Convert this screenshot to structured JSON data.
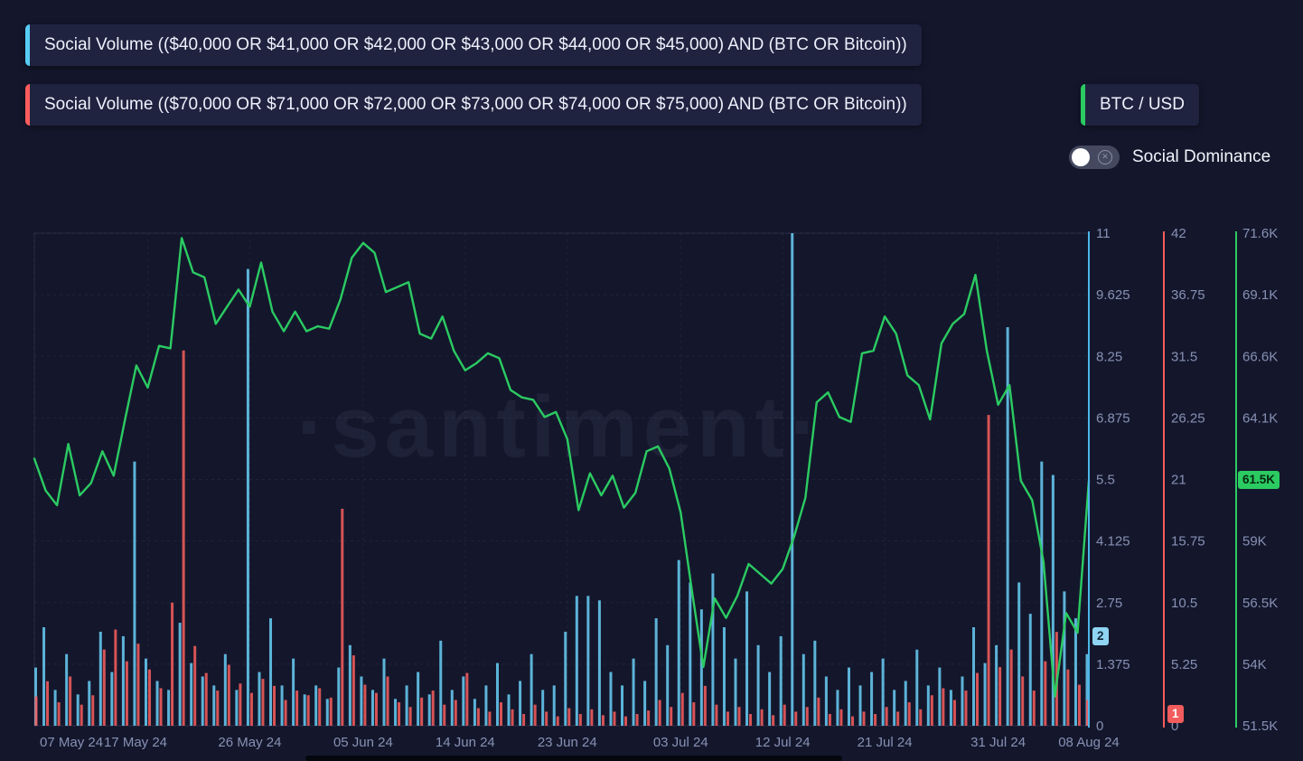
{
  "legend": {
    "items": [
      {
        "label": "Social Volume (($40,000 OR $41,000 OR $42,000 OR $43,000 OR $44,000 OR $45,000) AND (BTC OR Bitcoin))",
        "color": "#56cdf5"
      },
      {
        "label": "Social Volume (($70,000 OR $71,000 OR $72,000 OR $73,000 OR $74,000 OR $75,000) AND (BTC OR Bitcoin))",
        "color": "#ff5c5c"
      },
      {
        "label": "BTC / USD",
        "color": "#2bcb62"
      }
    ]
  },
  "controls": {
    "social_dominance_label": "Social Dominance"
  },
  "watermark": "·santiment·",
  "badges": {
    "blue_current": "2",
    "red_current": "1",
    "green_current": "61.5K"
  },
  "chart_data": {
    "type": "mixed",
    "x_tick_labels": [
      "07 May 24",
      "17 May 24",
      "26 May 24",
      "05 Jun 24",
      "14 Jun 24",
      "23 Jun 24",
      "03 Jul 24",
      "12 Jul 24",
      "21 Jul 24",
      "31 Jul 24",
      "08 Aug 24"
    ],
    "x_tick_days": [
      0,
      10,
      19,
      29,
      38,
      47,
      57,
      66,
      75,
      85,
      93
    ],
    "grid": true,
    "axes": {
      "blue": {
        "ticks": [
          "0",
          "1.375",
          "2.75",
          "4.125",
          "5.5",
          "6.875",
          "8.25",
          "9.625",
          "11"
        ],
        "min": 0,
        "max": 11,
        "color": "#4db5e8",
        "current": 2
      },
      "red": {
        "ticks": [
          "0",
          "5.25",
          "10.5",
          "15.75",
          "21",
          "26.25",
          "31.5",
          "36.75",
          "42"
        ],
        "min": 0,
        "max": 42,
        "color": "#f25c5c",
        "current": 1
      },
      "green": {
        "ticks": [
          "51.5K",
          "54K",
          "56.5K",
          "59K",
          "61.5K",
          "64.1K",
          "66.6K",
          "69.1K",
          "71.6K"
        ],
        "min": 51.5,
        "max": 71.6,
        "color": "#2bcb62",
        "current": 61.5
      }
    },
    "series": [
      {
        "name": "Social Volume (($40,000 OR $41,000 OR $42,000 OR $43,000 OR $44,000 OR $45,000) AND (BTC OR Bitcoin))",
        "type": "bar",
        "axis": "blue",
        "color": "#66c9f0",
        "values": [
          1.3,
          2.2,
          0.8,
          1.6,
          0.7,
          1.0,
          2.1,
          1.2,
          2.0,
          5.9,
          1.5,
          1.0,
          0.8,
          2.3,
          1.4,
          1.1,
          0.9,
          1.6,
          0.8,
          10.2,
          1.2,
          2.4,
          0.9,
          1.5,
          0.7,
          0.9,
          0.6,
          1.3,
          1.8,
          1.1,
          0.8,
          1.5,
          0.6,
          0.9,
          1.2,
          0.7,
          1.9,
          0.8,
          1.1,
          0.6,
          0.9,
          1.4,
          0.7,
          1.0,
          1.6,
          0.8,
          0.9,
          2.1,
          2.9,
          2.9,
          2.8,
          1.2,
          0.9,
          1.5,
          1.0,
          2.4,
          1.8,
          3.7,
          3.2,
          2.6,
          3.4,
          2.2,
          1.5,
          3.0,
          1.8,
          1.2,
          2.0,
          11.0,
          1.6,
          1.9,
          1.1,
          0.8,
          1.3,
          0.9,
          1.2,
          1.5,
          0.8,
          1.0,
          1.7,
          0.9,
          1.3,
          0.8,
          1.1,
          2.2,
          1.4,
          1.8,
          8.9,
          3.2,
          2.5,
          5.9,
          5.6,
          3.0,
          2.4,
          1.6
        ]
      },
      {
        "name": "Social Volume (($70,000 OR $71,000 OR $72,000 OR $73,000 OR $74,000 OR $75,000) AND (BTC OR Bitcoin))",
        "type": "bar",
        "axis": "red",
        "color": "#f25c5c",
        "values": [
          2.5,
          3.8,
          2.0,
          4.2,
          1.8,
          2.6,
          6.5,
          8.2,
          5.5,
          7.0,
          4.8,
          3.2,
          10.5,
          32.0,
          6.8,
          4.5,
          3.0,
          5.2,
          3.6,
          2.8,
          4.0,
          3.4,
          2.2,
          3.0,
          2.6,
          3.2,
          2.4,
          18.5,
          6.0,
          3.5,
          2.8,
          4.2,
          2.0,
          1.6,
          2.4,
          3.0,
          1.8,
          2.2,
          4.5,
          1.5,
          1.2,
          2.0,
          1.4,
          1.0,
          1.8,
          1.2,
          0.8,
          1.5,
          1.0,
          1.4,
          0.9,
          1.2,
          0.8,
          1.0,
          1.3,
          2.2,
          1.6,
          2.8,
          2.0,
          3.4,
          1.8,
          1.2,
          1.6,
          1.0,
          1.4,
          0.9,
          1.8,
          1.2,
          1.6,
          2.4,
          1.0,
          1.4,
          0.8,
          1.2,
          1.0,
          1.6,
          1.2,
          2.0,
          1.4,
          2.6,
          3.2,
          2.2,
          3.0,
          4.5,
          26.5,
          5.0,
          6.5,
          4.2,
          3.0,
          5.5,
          8.0,
          4.8,
          3.5,
          2.2
        ]
      },
      {
        "name": "BTC / USD",
        "type": "line",
        "axis": "green",
        "color": "#2bcb62",
        "unit": "K USD",
        "values": [
          62.4,
          61.1,
          60.5,
          63.0,
          60.9,
          61.4,
          62.7,
          61.7,
          64.0,
          66.2,
          65.3,
          67.0,
          66.9,
          71.4,
          70.0,
          69.8,
          67.9,
          68.6,
          69.3,
          68.6,
          70.4,
          68.4,
          67.6,
          68.4,
          67.6,
          67.8,
          67.7,
          68.9,
          70.6,
          71.2,
          70.8,
          69.2,
          69.4,
          69.6,
          67.5,
          67.3,
          68.2,
          66.8,
          66.0,
          66.3,
          66.7,
          66.5,
          65.2,
          64.9,
          64.8,
          64.1,
          64.3,
          63.2,
          60.3,
          61.8,
          60.9,
          61.7,
          60.4,
          61.0,
          62.7,
          62.9,
          62.0,
          60.2,
          57.0,
          53.9,
          56.7,
          55.9,
          56.8,
          58.1,
          57.7,
          57.3,
          57.9,
          59.2,
          60.8,
          64.7,
          65.1,
          64.1,
          63.9,
          66.7,
          66.8,
          68.2,
          67.5,
          65.8,
          65.4,
          64.0,
          67.1,
          67.9,
          68.3,
          69.9,
          66.8,
          64.6,
          65.4,
          61.5,
          60.7,
          58.2,
          52.7,
          56.1,
          55.3,
          61.5
        ]
      }
    ]
  }
}
